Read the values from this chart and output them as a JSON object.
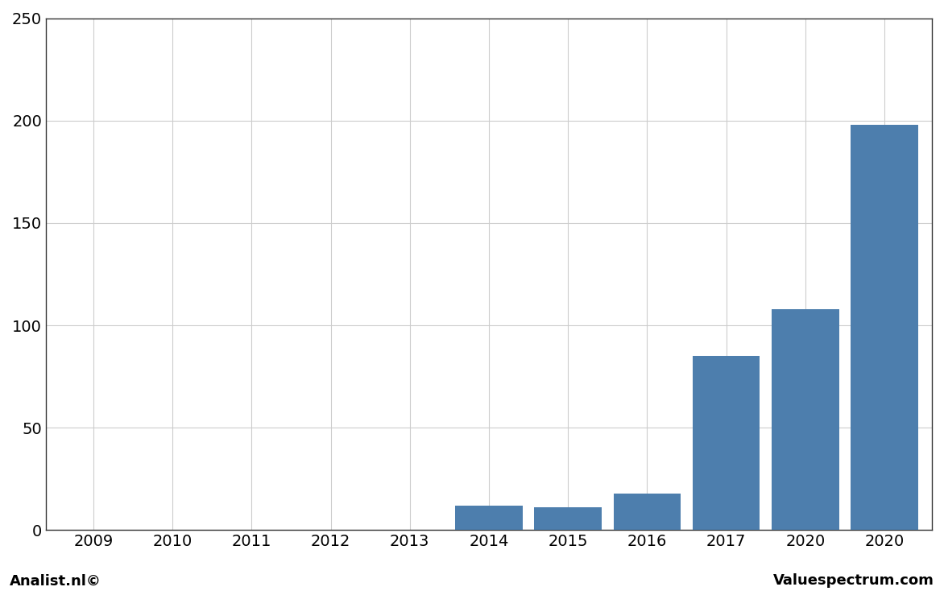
{
  "categories": [
    "2009",
    "2010",
    "2011",
    "2012",
    "2013",
    "2014",
    "2015",
    "2016",
    "2017",
    "2020",
    "2020"
  ],
  "values": [
    0,
    0,
    0,
    0,
    0,
    12,
    11,
    18,
    85,
    108,
    198
  ],
  "bar_color": "#4d7ead",
  "ylim": [
    0,
    250
  ],
  "yticks": [
    0,
    50,
    100,
    150,
    200,
    250
  ],
  "ylabel": "",
  "xlabel": "",
  "background_color": "#ffffff",
  "plot_bg_color": "#ffffff",
  "grid_color": "#cccccc",
  "footer_left": "Analist.nl©",
  "footer_right": "Valuespectrum.com",
  "footer_fontsize": 13,
  "tick_fontsize": 14,
  "bar_width": 0.85
}
